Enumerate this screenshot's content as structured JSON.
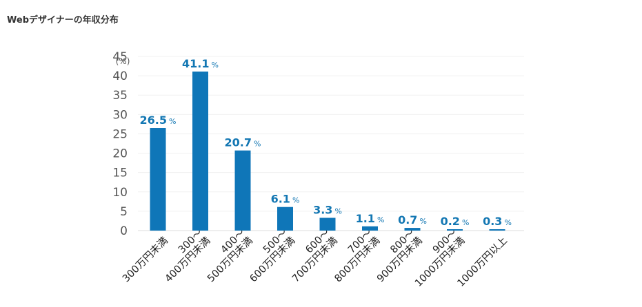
{
  "page": {
    "title": "Webデザイナーの年収分布"
  },
  "chart_data": {
    "type": "bar",
    "title": "Webデザイナーの年収分布",
    "ylabel": "(%)",
    "xlabel": "",
    "ylim": [
      0,
      45
    ],
    "yticks": [
      0,
      5,
      10,
      15,
      20,
      25,
      30,
      35,
      40,
      45
    ],
    "grid": true,
    "legend": "none",
    "bar_color": "#0f76b8",
    "label_color": "#1377b3",
    "value_suffix": "%",
    "categories": [
      [
        "300万円未満"
      ],
      [
        "300～",
        "400万円未満"
      ],
      [
        "400～",
        "500万円未満"
      ],
      [
        "500～",
        "600万円未満"
      ],
      [
        "600～",
        "700万円未満"
      ],
      [
        "700～",
        "800万円未満"
      ],
      [
        "800～",
        "900万円未満"
      ],
      [
        "900～",
        "1000万円未満"
      ],
      [
        "1000万円以上"
      ]
    ],
    "values": [
      26.5,
      41.1,
      20.7,
      6.1,
      3.3,
      1.1,
      0.7,
      0.2,
      0.3
    ]
  }
}
